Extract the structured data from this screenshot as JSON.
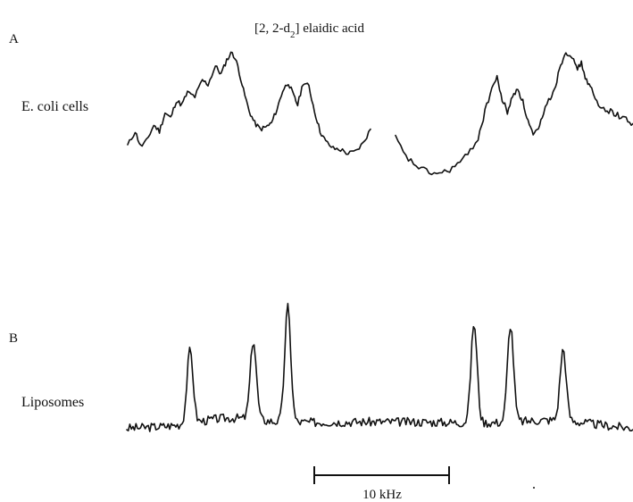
{
  "chart_data": {
    "type": "line",
    "title_main": "[2, 2-d",
    "title_sub": "2",
    "title_tail": "] elaidic acid",
    "scale_bar_label": "10 kHz",
    "panels": [
      {
        "panel_letter": "A",
        "sample_label": "E. coli cells",
        "segments": [
          [
            [
              0,
              0.08
            ],
            [
              0.02,
              0.22
            ],
            [
              0.035,
              0.07
            ],
            [
              0.05,
              0.12
            ],
            [
              0.07,
              0.28
            ],
            [
              0.085,
              0.22
            ],
            [
              0.1,
              0.4
            ],
            [
              0.115,
              0.35
            ],
            [
              0.13,
              0.52
            ],
            [
              0.145,
              0.48
            ],
            [
              0.16,
              0.6
            ],
            [
              0.18,
              0.56
            ],
            [
              0.2,
              0.72
            ],
            [
              0.215,
              0.68
            ],
            [
              0.235,
              0.86
            ],
            [
              0.25,
              0.78
            ],
            [
              0.265,
              0.92
            ],
            [
              0.28,
              1.0
            ],
            [
              0.295,
              0.86
            ],
            [
              0.31,
              0.62
            ],
            [
              0.325,
              0.42
            ],
            [
              0.34,
              0.3
            ],
            [
              0.355,
              0.24
            ],
            [
              0.37,
              0.26
            ],
            [
              0.385,
              0.3
            ],
            [
              0.4,
              0.44
            ],
            [
              0.415,
              0.62
            ],
            [
              0.43,
              0.7
            ],
            [
              0.445,
              0.56
            ],
            [
              0.455,
              0.48
            ],
            [
              0.47,
              0.7
            ],
            [
              0.485,
              0.66
            ],
            [
              0.5,
              0.42
            ],
            [
              0.515,
              0.22
            ],
            [
              0.53,
              0.12
            ],
            [
              0.55,
              0.05
            ],
            [
              0.57,
              0.04
            ],
            [
              0.59,
              0.0
            ],
            [
              0.61,
              0.02
            ],
            [
              0.63,
              0.1
            ],
            [
              0.65,
              0.24
            ]
          ],
          [
            [
              0,
              0.28
            ],
            [
              0.03,
              0.12
            ],
            [
              0.06,
              0.05
            ],
            [
              0.09,
              0.0
            ],
            [
              0.12,
              -0.02
            ],
            [
              0.15,
              0.0
            ],
            [
              0.18,
              0.06
            ],
            [
              0.21,
              0.14
            ],
            [
              0.24,
              0.28
            ],
            [
              0.26,
              0.5
            ],
            [
              0.28,
              0.7
            ],
            [
              0.295,
              0.78
            ],
            [
              0.31,
              0.6
            ],
            [
              0.325,
              0.5
            ],
            [
              0.34,
              0.62
            ],
            [
              0.355,
              0.7
            ],
            [
              0.37,
              0.58
            ],
            [
              0.385,
              0.42
            ],
            [
              0.4,
              0.3
            ],
            [
              0.415,
              0.34
            ],
            [
              0.43,
              0.5
            ],
            [
              0.45,
              0.62
            ],
            [
              0.465,
              0.72
            ],
            [
              0.48,
              0.9
            ],
            [
              0.495,
              1.0
            ],
            [
              0.51,
              0.98
            ],
            [
              0.525,
              0.86
            ],
            [
              0.54,
              0.9
            ],
            [
              0.555,
              0.76
            ],
            [
              0.57,
              0.68
            ],
            [
              0.59,
              0.54
            ],
            [
              0.61,
              0.52
            ],
            [
              0.63,
              0.5
            ],
            [
              0.65,
              0.46
            ],
            [
              0.67,
              0.44
            ],
            [
              0.69,
              0.4
            ]
          ]
        ]
      },
      {
        "panel_letter": "B",
        "sample_label": "Liposomes",
        "peaks": [
          {
            "x": 0.125,
            "h": 0.57
          },
          {
            "x": 0.25,
            "h": 0.62
          },
          {
            "x": 0.318,
            "h": 0.9
          },
          {
            "x": 0.686,
            "h": 0.78
          },
          {
            "x": 0.758,
            "h": 0.76
          },
          {
            "x": 0.862,
            "h": 0.56
          }
        ]
      }
    ]
  }
}
